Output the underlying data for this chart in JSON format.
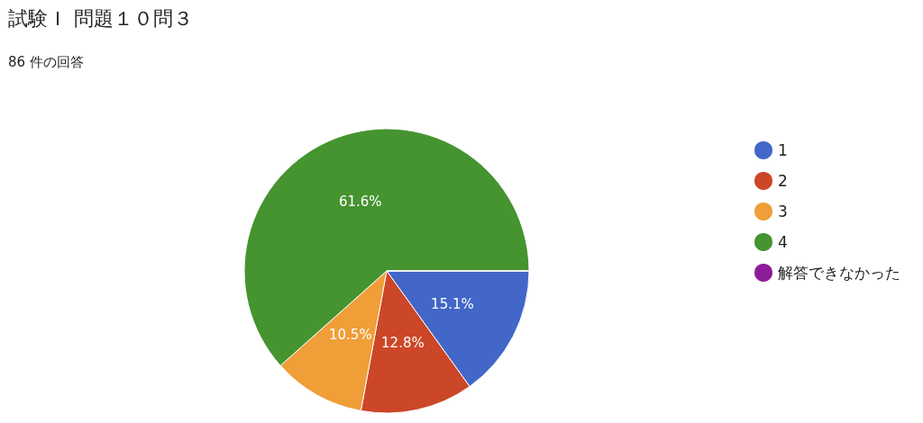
{
  "chart_data": {
    "type": "pie",
    "title": "試験Ｉ 問題１０問３",
    "subtitle": "86 件の回答",
    "categories": [
      "1",
      "2",
      "3",
      "4",
      "解答できなかった"
    ],
    "values": [
      15.1,
      12.8,
      10.5,
      61.6,
      0
    ],
    "value_labels": [
      "15.1%",
      "12.8%",
      "10.5%",
      "61.6%",
      null
    ],
    "colors": [
      "#4267c8",
      "#cc4628",
      "#f09e38",
      "#45942f",
      "#8c1d99"
    ],
    "legend": "right"
  }
}
